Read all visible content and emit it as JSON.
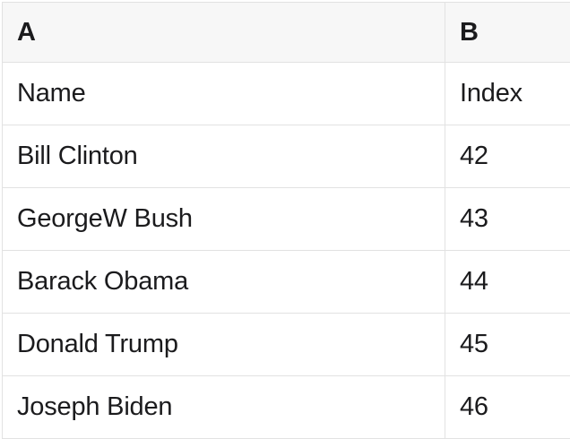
{
  "table": {
    "columns": [
      {
        "key": "A",
        "label": "A"
      },
      {
        "key": "B",
        "label": "B"
      }
    ],
    "rows": [
      [
        "Name",
        "Index"
      ],
      [
        "Bill Clinton",
        "42"
      ],
      [
        "GeorgeW Bush",
        "43"
      ],
      [
        "Barack Obama",
        "44"
      ],
      [
        "Donald Trump",
        "45"
      ],
      [
        "Joseph Biden",
        "46"
      ]
    ]
  },
  "colors": {
    "header_bg": "#f7f7f7",
    "grid_line_color": "#e2e2e2",
    "text_color": "#1b1b1d"
  }
}
